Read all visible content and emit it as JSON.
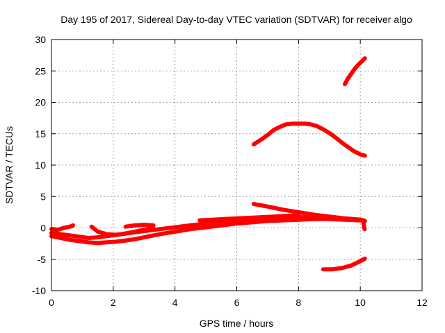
{
  "chart_data": {
    "type": "scatter",
    "title": "Day 195 of 2017, Sidereal Day-to-day VTEC variation (SDTVAR) for receiver algo",
    "xlabel": "GPS time / hours",
    "ylabel": "SDTVAR / TECUs",
    "xlim": [
      0,
      12
    ],
    "ylim": [
      -10,
      30
    ],
    "xticks": [
      "0",
      "2",
      "4",
      "6",
      "8",
      "10",
      "12"
    ],
    "yticks": [
      "-10",
      "-5",
      "0",
      "5",
      "10",
      "15",
      "20",
      "25",
      "30"
    ],
    "grid": true,
    "color": "#ff0000",
    "series": [
      {
        "x": [
          0.0,
          0.2,
          0.4,
          0.6,
          0.7
        ],
        "y": [
          -0.2,
          -0.3,
          0.0,
          0.2,
          0.4
        ]
      },
      {
        "x": [
          0.0,
          0.3,
          0.6,
          0.9,
          1.2,
          1.5,
          1.8,
          2.1,
          2.4,
          2.7,
          3.0,
          3.5,
          4.0,
          4.5,
          5.0,
          5.5,
          6.0,
          6.5,
          7.0,
          7.5,
          8.0,
          8.5,
          9.0,
          9.5,
          10.0,
          10.1
        ],
        "y": [
          -1.3,
          -1.6,
          -1.9,
          -2.1,
          -2.3,
          -2.4,
          -2.3,
          -2.2,
          -2.0,
          -1.8,
          -1.5,
          -1.0,
          -0.6,
          -0.2,
          0.1,
          0.4,
          0.7,
          0.9,
          1.1,
          1.2,
          1.3,
          1.4,
          1.4,
          1.3,
          1.2,
          1.1
        ]
      },
      {
        "x": [
          0.0,
          0.3,
          0.6,
          0.9,
          1.2,
          1.5,
          1.8,
          2.1,
          2.4,
          2.7,
          3.0,
          3.5,
          4.0,
          4.5,
          5.0,
          5.5,
          6.0,
          6.5,
          7.0,
          7.5,
          8.0,
          8.5,
          9.0,
          9.5,
          10.0,
          10.1
        ],
        "y": [
          -0.8,
          -1.0,
          -1.2,
          -1.4,
          -1.6,
          -1.5,
          -1.3,
          -1.1,
          -0.9,
          -0.7,
          -0.5,
          -0.2,
          0.1,
          0.4,
          0.7,
          0.9,
          1.1,
          1.3,
          1.5,
          1.6,
          1.7,
          1.7,
          1.6,
          1.5,
          1.3,
          1.2
        ]
      },
      {
        "x": [
          1.3,
          1.5,
          1.8,
          2.1,
          2.4,
          2.7,
          3.0,
          3.3
        ],
        "y": [
          0.2,
          -0.6,
          -1.0,
          -1.1,
          -0.9,
          -0.6,
          -0.3,
          0.0
        ]
      },
      {
        "x": [
          2.4,
          2.7,
          3.0,
          3.3
        ],
        "y": [
          0.2,
          0.4,
          0.5,
          0.4
        ]
      },
      {
        "x": [
          4.8,
          5.2,
          5.6,
          6.0,
          6.4,
          6.8,
          7.2,
          7.6,
          8.0
        ],
        "y": [
          1.2,
          1.3,
          1.4,
          1.5,
          1.6,
          1.7,
          1.8,
          1.9,
          2.0
        ]
      },
      {
        "x": [
          6.55,
          7.0,
          7.5,
          8.0,
          8.5,
          9.0,
          9.5,
          10.0,
          10.15
        ],
        "y": [
          3.8,
          3.4,
          2.9,
          2.5,
          2.1,
          1.8,
          1.5,
          1.3,
          1.1
        ]
      },
      {
        "x": [
          10.1,
          10.12,
          10.14
        ],
        "y": [
          1.0,
          0.2,
          -0.2
        ]
      },
      {
        "x": [
          6.55,
          6.8,
          7.0,
          7.2,
          7.4,
          7.6,
          7.8,
          8.0,
          8.2,
          8.4,
          8.6,
          8.8,
          9.0,
          9.2,
          9.4,
          9.6,
          9.8,
          10.0,
          10.15
        ],
        "y": [
          13.3,
          14.1,
          14.8,
          15.6,
          16.1,
          16.5,
          16.6,
          16.6,
          16.6,
          16.5,
          16.2,
          15.7,
          15.1,
          14.4,
          13.6,
          12.9,
          12.2,
          11.7,
          11.5
        ]
      },
      {
        "x": [
          9.5,
          9.6,
          9.7,
          9.8,
          9.9,
          10.0,
          10.1,
          10.15
        ],
        "y": [
          22.9,
          23.8,
          24.5,
          25.2,
          25.8,
          26.3,
          26.8,
          27.0
        ]
      },
      {
        "x": [
          8.8,
          9.1,
          9.4,
          9.7,
          10.0,
          10.15
        ],
        "y": [
          -6.6,
          -6.6,
          -6.4,
          -6.0,
          -5.3,
          -4.9
        ]
      }
    ]
  }
}
